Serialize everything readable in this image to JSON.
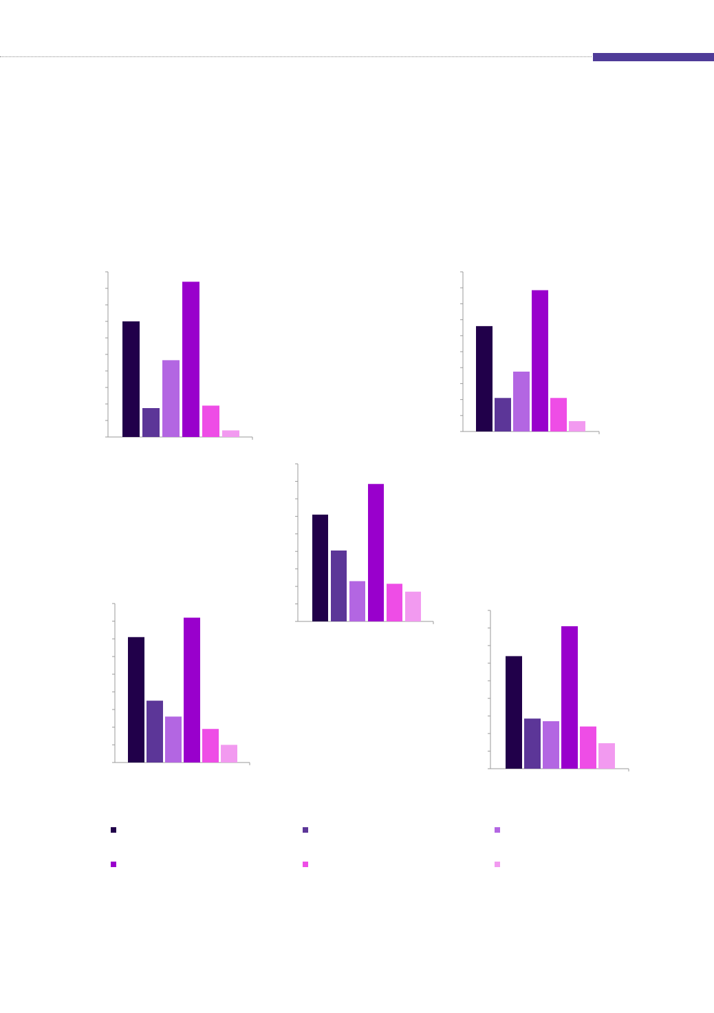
{
  "page": {
    "header_bar_color": "#4f3b98"
  },
  "series_colors": [
    "#21004a",
    "#5c3698",
    "#b366e2",
    "#9900cc",
    "#ee4de6",
    "#f29af0"
  ],
  "legend": {
    "items": [
      {
        "color": "#21004a"
      },
      {
        "color": "#5c3698"
      },
      {
        "color": "#b366e2"
      },
      {
        "color": "#9900cc"
      },
      {
        "color": "#ee4de6"
      },
      {
        "color": "#f29af0"
      }
    ]
  },
  "chart_data": [
    {
      "type": "bar",
      "title": "",
      "categories": [
        "",
        "",
        "",
        "",
        "",
        ""
      ],
      "values": [
        7.0,
        1.75,
        4.65,
        9.4,
        1.9,
        0.4
      ],
      "ylim": [
        0,
        10
      ],
      "grid": false
    },
    {
      "type": "bar",
      "title": "",
      "categories": [
        "",
        "",
        "",
        "",
        "",
        ""
      ],
      "values": [
        6.6,
        2.1,
        3.75,
        8.85,
        2.1,
        0.65
      ],
      "ylim": [
        0,
        10
      ],
      "grid": false
    },
    {
      "type": "bar",
      "title": "",
      "categories": [
        "",
        "",
        "",
        "",
        "",
        ""
      ],
      "values": [
        6.1,
        4.05,
        2.3,
        7.85,
        2.15,
        1.7
      ],
      "ylim": [
        0,
        9
      ],
      "grid": false
    },
    {
      "type": "bar",
      "title": "",
      "categories": [
        "",
        "",
        "",
        "",
        "",
        ""
      ],
      "values": [
        7.1,
        3.5,
        2.6,
        8.2,
        1.9,
        1.0
      ],
      "ylim": [
        0,
        9
      ],
      "grid": false
    },
    {
      "type": "bar",
      "title": "",
      "categories": [
        "",
        "",
        "",
        "",
        "",
        ""
      ],
      "values": [
        6.4,
        2.85,
        2.7,
        8.1,
        2.4,
        1.45
      ],
      "ylim": [
        0,
        9
      ],
      "grid": false
    }
  ]
}
